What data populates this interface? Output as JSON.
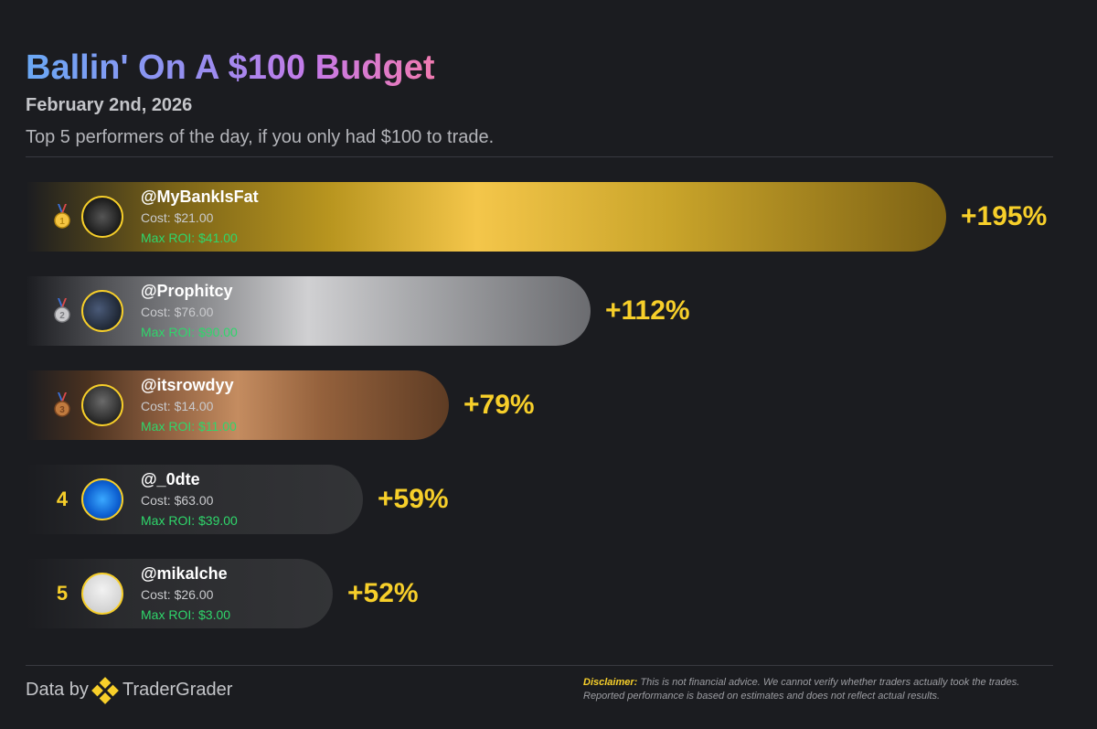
{
  "header": {
    "title": "Ballin' On A $100 Budget",
    "date": "February 2nd, 2026",
    "subtitle": "Top 5 performers of the day, if you only had $100 to trade."
  },
  "chart_data": {
    "type": "bar",
    "orientation": "horizontal",
    "title": "Ballin' On A $100 Budget",
    "categories": [
      "@MyBankIsFat",
      "@Prophitcy",
      "@itsrowdyy",
      "@_0dte",
      "@mikalche"
    ],
    "values": [
      195,
      112,
      79,
      59,
      52
    ],
    "rows": [
      {
        "rank": "1",
        "medal": "gold",
        "handle": "@MyBankIsFat",
        "cost": "Cost: $21.00",
        "roi": "Max ROI: $41.00",
        "pct_label": "+195%",
        "value": 195
      },
      {
        "rank": "2",
        "medal": "silver",
        "handle": "@Prophitcy",
        "cost": "Cost: $76.00",
        "roi": "Max ROI: $90.00",
        "pct_label": "+112%",
        "value": 112
      },
      {
        "rank": "3",
        "medal": "bronze",
        "handle": "@itsrowdyy",
        "cost": "Cost: $14.00",
        "roi": "Max ROI: $11.00",
        "pct_label": "+79%",
        "value": 79
      },
      {
        "rank": "4",
        "medal": "",
        "handle": "@_0dte",
        "cost": "Cost: $63.00",
        "roi": "Max ROI: $39.00",
        "pct_label": "+59%",
        "value": 59
      },
      {
        "rank": "5",
        "medal": "",
        "handle": "@mikalche",
        "cost": "Cost: $26.00",
        "roi": "Max ROI: $3.00",
        "pct_label": "+52%",
        "value": 52
      }
    ]
  },
  "footer": {
    "data_by": "Data by",
    "brand": "TraderGrader",
    "disclaimer_label": "Disclaimer:",
    "disclaimer_text": "This is not financial advice. We cannot verify whether traders actually took the trades. Reported performance is based on estimates and does not reflect actual results."
  },
  "colors": {
    "background": "#1b1c20",
    "accent": "#f7cf2a",
    "roi_green": "#2fd66b",
    "gold": "#f4c64a",
    "silver": "#d0d0d2",
    "bronze": "#c48c60"
  },
  "icons": {
    "medal": "medal-icon",
    "logo": "tradergrader-logo-icon",
    "avatar": "avatar"
  }
}
